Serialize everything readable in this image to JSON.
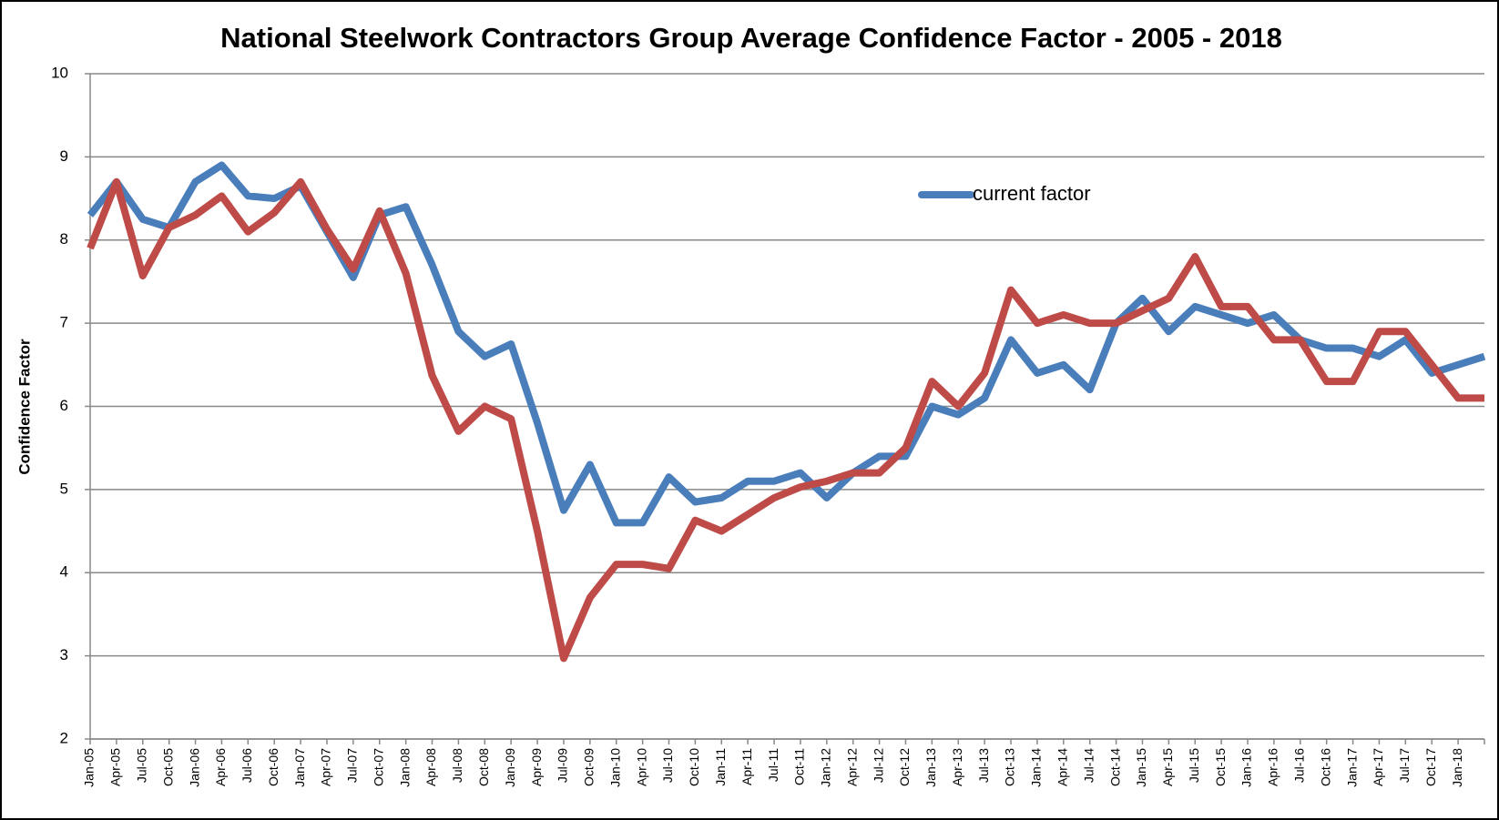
{
  "chart_data": {
    "type": "line",
    "title": "National Steelwork Contractors Group Average Confidence Factor - 2005 - 2018",
    "y_label": "Confidence Factor",
    "categories": [
      "Jan-05",
      "Apr-05",
      "Jul-05",
      "Oct-05",
      "Jan-06",
      "Apr-06",
      "Jul-06",
      "Oct-06",
      "Jan-07",
      "Apr-07",
      "Jul-07",
      "Oct-07",
      "Jan-08",
      "Apr-08",
      "Jul-08",
      "Oct-08",
      "Jan-09",
      "Apr-09",
      "Jul-09",
      "Oct-09",
      "Jan-10",
      "Apr-10",
      "Jul-10",
      "Oct-10",
      "Jan-11",
      "Apr-11",
      "Jul-11",
      "Oct-11",
      "Jan-12",
      "Apr-12",
      "Jul-12",
      "Oct-12",
      "Jan-13",
      "Apr-13",
      "Jul-13",
      "Oct-13",
      "Jan-14",
      "Apr-14",
      "Jul-14",
      "Oct-14",
      "Jan-15",
      "Apr-15",
      "Jul-15",
      "Oct-15",
      "Jan-16",
      "Apr-16",
      "Jul-16",
      "Oct-16",
      "Jan-17",
      "Apr-17",
      "Jul-17",
      "Oct-17",
      "Jan-18",
      null
    ],
    "series": [
      {
        "name": "current factor",
        "color": "#4a7ebb",
        "values": [
          8.3,
          8.7,
          8.25,
          8.15,
          8.7,
          8.9,
          8.53,
          8.5,
          8.65,
          8.1,
          7.55,
          8.3,
          8.4,
          7.7,
          6.9,
          6.6,
          6.75,
          5.8,
          4.75,
          5.3,
          4.6,
          4.6,
          5.15,
          4.85,
          4.9,
          5.1,
          5.1,
          5.2,
          4.9,
          5.2,
          5.4,
          5.4,
          6.0,
          5.9,
          6.1,
          6.8,
          6.4,
          6.5,
          6.2,
          7.0,
          7.3,
          6.9,
          7.2,
          7.1,
          7.0,
          7.1,
          6.8,
          6.7,
          6.7,
          6.6,
          6.8,
          6.4,
          6.5,
          6.6
        ]
      },
      {
        "color": "#be4b48",
        "values": [
          7.9,
          8.7,
          7.57,
          8.15,
          8.3,
          8.53,
          8.1,
          8.33,
          8.7,
          8.13,
          7.65,
          8.35,
          7.6,
          6.37,
          5.7,
          6.0,
          5.85,
          4.5,
          2.97,
          3.7,
          4.1,
          4.1,
          4.05,
          4.63,
          4.5,
          4.7,
          4.9,
          5.03,
          5.1,
          5.2,
          5.2,
          5.5,
          6.3,
          6.0,
          6.4,
          7.4,
          7.0,
          7.1,
          7.0,
          7.0,
          7.15,
          7.3,
          7.8,
          7.2,
          7.2,
          6.8,
          6.8,
          6.3,
          6.3,
          6.9,
          6.9,
          6.5,
          6.1,
          6.1
        ]
      }
    ],
    "ylim": [
      2,
      10
    ],
    "yticks": [
      2,
      3,
      4,
      5,
      6,
      7,
      8,
      9,
      10
    ],
    "grid": true
  }
}
